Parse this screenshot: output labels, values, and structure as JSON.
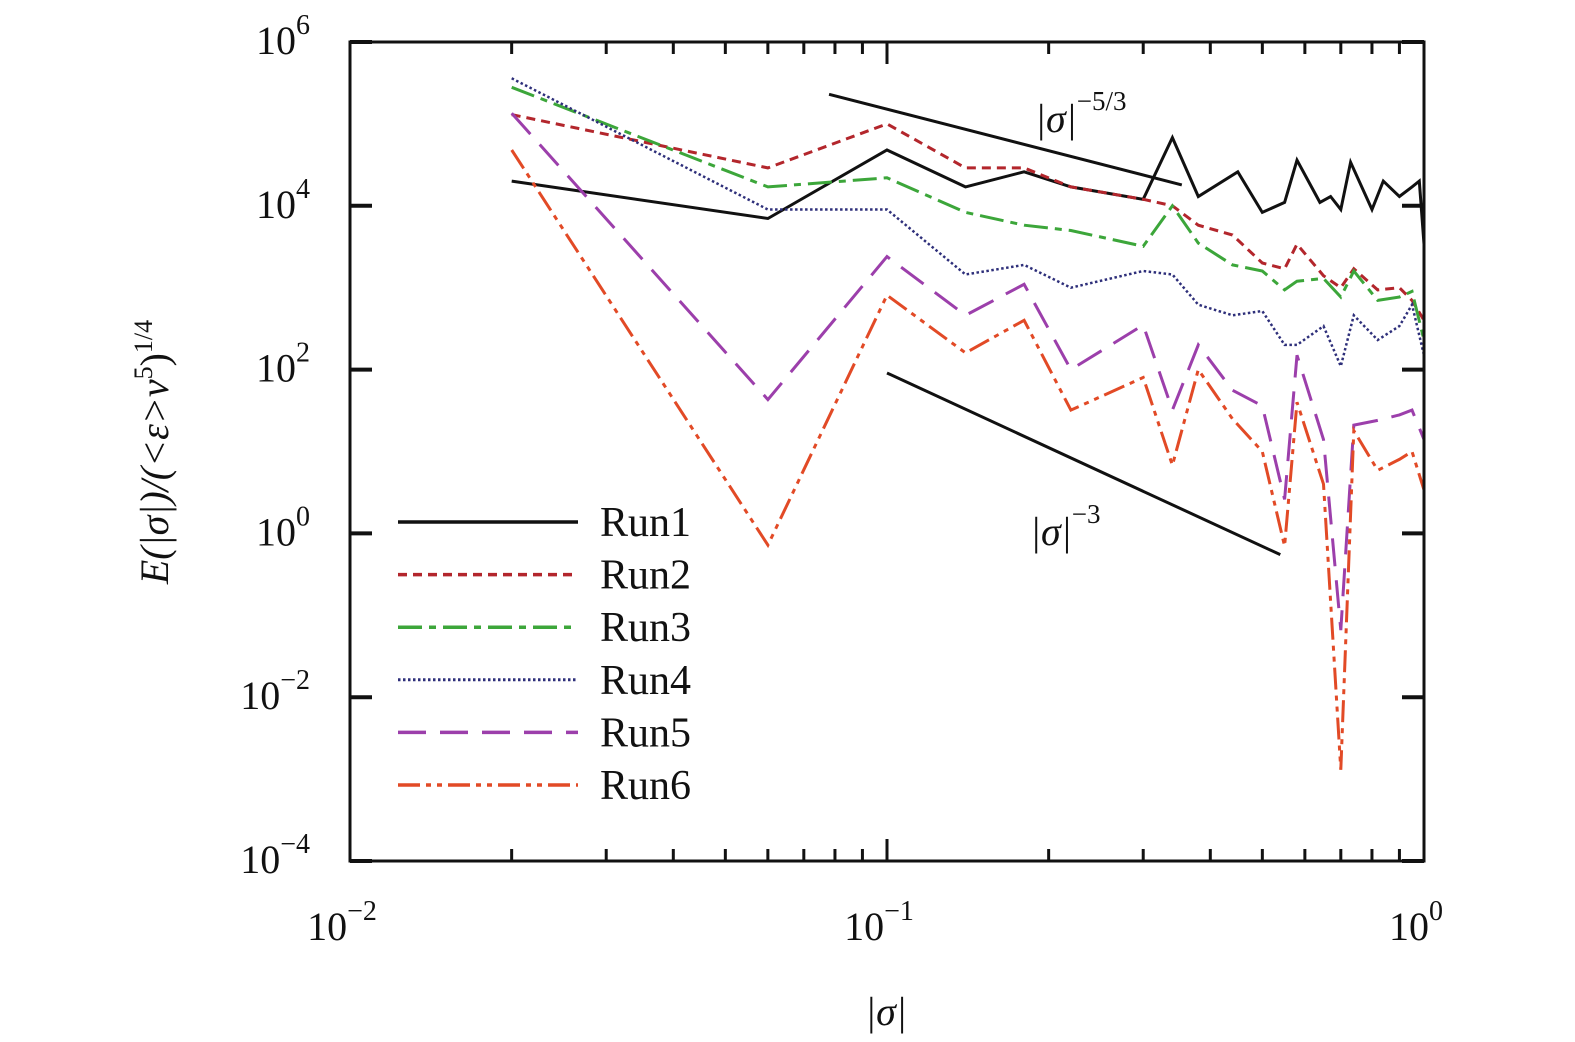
{
  "chart_data": {
    "type": "line",
    "xlabel": "|σ|",
    "ylabel": "E(|σ|)/(<ε>ν⁵)¹ᐟ⁴",
    "ylabel_parts": {
      "main": "E(|σ|)/(<ε>ν",
      "sup1": "5",
      "mid": ")",
      "sup2": "1/4"
    },
    "xscale": "log",
    "yscale": "log",
    "xlim": [
      0.01,
      1
    ],
    "ylim": [
      0.0001,
      1000000
    ],
    "grid": false,
    "legend_placement": "bottom-left",
    "x_ticks": [
      {
        "base": "10",
        "exp": "−2"
      },
      {
        "base": "10",
        "exp": "−1"
      },
      {
        "base": "10",
        "exp": "0"
      }
    ],
    "y_ticks": [
      {
        "base": "10",
        "exp": "6"
      },
      {
        "base": "10",
        "exp": "4"
      },
      {
        "base": "10",
        "exp": "2"
      },
      {
        "base": "10",
        "exp": "0"
      },
      {
        "base": "10",
        "exp": "−2"
      },
      {
        "base": "10",
        "exp": "−4"
      }
    ],
    "x": [
      0.02,
      0.06,
      0.1,
      0.14,
      0.18,
      0.22,
      0.3,
      0.34,
      0.38,
      0.44,
      0.5,
      0.55,
      0.58,
      0.65,
      0.7,
      0.74,
      0.82,
      0.9,
      0.95,
      1.0
    ],
    "series": [
      {
        "name": "Run1",
        "color": "#111111",
        "style": "solid",
        "x": [
          0.02,
          0.06,
          0.1,
          0.14,
          0.18,
          0.22,
          0.3,
          0.34,
          0.38,
          0.45,
          0.5,
          0.55,
          0.58,
          0.64,
          0.67,
          0.7,
          0.73,
          0.8,
          0.84,
          0.9,
          0.95,
          0.98,
          1.0
        ],
        "values": [
          20000,
          7000,
          48000,
          17000,
          26000,
          17000,
          12000,
          68000,
          13000,
          26000,
          8300,
          11000,
          36000,
          11000,
          13000,
          9000,
          34000,
          9000,
          20000,
          13000,
          17000,
          20000,
          3400
        ]
      },
      {
        "name": "Run2",
        "color": "#b3262c",
        "style": "dashed",
        "values": [
          130000,
          29000,
          100000,
          29000,
          29000,
          17000,
          12000,
          10000,
          5800,
          4400,
          2000,
          1700,
          3400,
          1400,
          1000,
          1700,
          940,
          1000,
          700,
          400
        ]
      },
      {
        "name": "Run3",
        "color": "#3ca63a",
        "style": "dash-dot",
        "values": [
          280000,
          17000,
          22000,
          8300,
          5800,
          5000,
          3200,
          10000,
          3500,
          1900,
          1600,
          940,
          1200,
          1300,
          770,
          1600,
          700,
          770,
          900,
          230
        ]
      },
      {
        "name": "Run4",
        "color": "#2e2f7a",
        "style": "dotted",
        "values": [
          360000,
          9000,
          9000,
          1450,
          1900,
          1000,
          1600,
          1450,
          620,
          460,
          520,
          200,
          200,
          340,
          110,
          460,
          230,
          340,
          620,
          150
        ]
      },
      {
        "name": "Run5",
        "color": "#9c3fab",
        "style": "long-dash",
        "values": [
          135000,
          43,
          2400,
          460,
          1100,
          100,
          350,
          32,
          200,
          56,
          36,
          2.6,
          150,
          14,
          0.066,
          21,
          24,
          28,
          32,
          14
        ]
      },
      {
        "name": "Run6",
        "color": "#e24a26",
        "style": "dash-dot-dot",
        "values": [
          48000,
          0.72,
          810,
          160,
          400,
          32,
          80,
          6.8,
          100,
          25,
          10,
          0.7,
          40,
          4,
          0.0013,
          18,
          5.9,
          8,
          10,
          3.4
        ]
      }
    ],
    "reference_lines": [
      {
        "label_base": "|σ|",
        "label_exp": "−5/3",
        "x": [
          0.078,
          0.354
        ],
        "y": [
          230000,
          18000
        ]
      },
      {
        "label_base": "|σ|",
        "label_exp": "−3",
        "x": [
          0.1,
          0.54
        ],
        "y": [
          91,
          0.55
        ]
      }
    ]
  }
}
